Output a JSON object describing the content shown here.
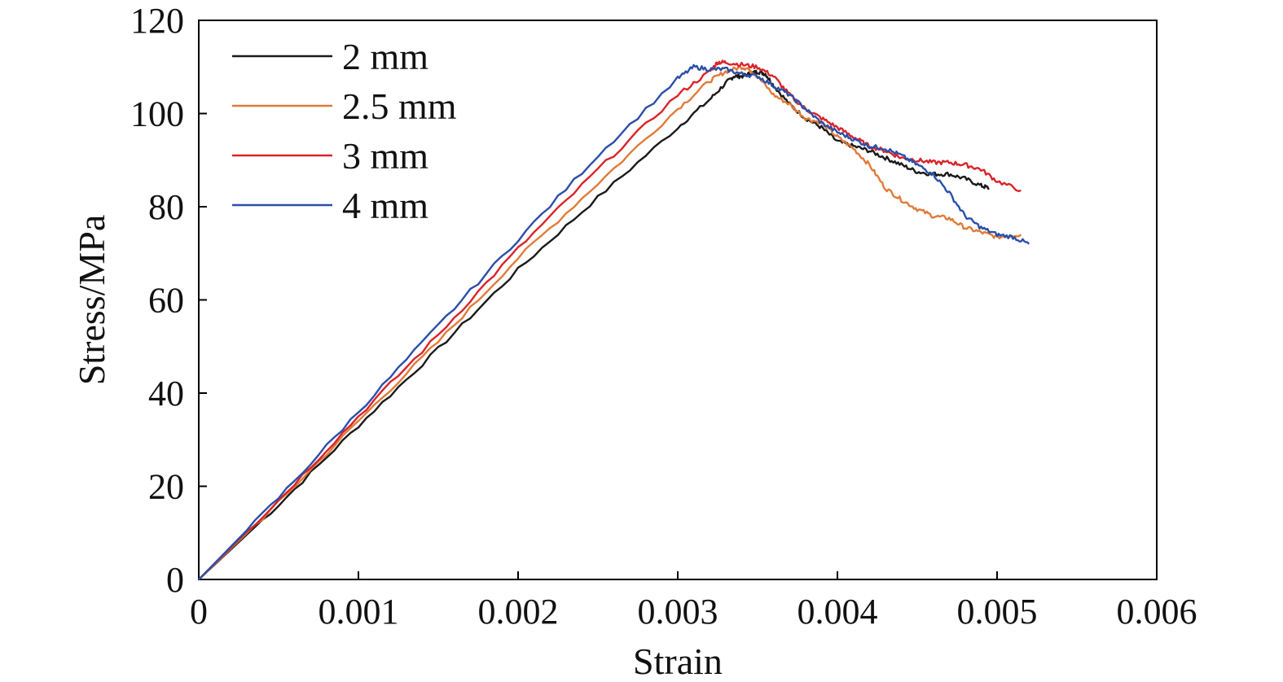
{
  "chart_data": {
    "type": "line",
    "title": "",
    "xlabel": "Strain",
    "ylabel": "Stress/MPa",
    "xlim": [
      0,
      0.006
    ],
    "ylim": [
      0,
      120
    ],
    "x_ticks": [
      {
        "value": 0,
        "label": "0"
      },
      {
        "value": 0.001,
        "label": "0.001"
      },
      {
        "value": 0.002,
        "label": "0.002"
      },
      {
        "value": 0.003,
        "label": "0.003"
      },
      {
        "value": 0.004,
        "label": "0.004"
      },
      {
        "value": 0.005,
        "label": "0.005"
      },
      {
        "value": 0.006,
        "label": "0.006"
      }
    ],
    "y_ticks": [
      {
        "value": 0,
        "label": "0"
      },
      {
        "value": 20,
        "label": "20"
      },
      {
        "value": 40,
        "label": "40"
      },
      {
        "value": 60,
        "label": "60"
      },
      {
        "value": 80,
        "label": "80"
      },
      {
        "value": 100,
        "label": "100"
      },
      {
        "value": 120,
        "label": "120"
      }
    ],
    "grid": false,
    "legend": "top-left",
    "series": [
      {
        "name": "2 mm",
        "color": "#1a1a1a",
        "points": [
          [
            0,
            0
          ],
          [
            0.0005,
            16
          ],
          [
            0.001,
            33
          ],
          [
            0.0015,
            49.5
          ],
          [
            0.002,
            66.5
          ],
          [
            0.0025,
            82
          ],
          [
            0.003,
            97
          ],
          [
            0.0032,
            103
          ],
          [
            0.0033,
            106.5
          ],
          [
            0.00335,
            108
          ],
          [
            0.0034,
            108
          ],
          [
            0.00345,
            108.5
          ],
          [
            0.0035,
            109
          ],
          [
            0.00355,
            108.5
          ],
          [
            0.0036,
            106
          ],
          [
            0.0037,
            102
          ],
          [
            0.0038,
            99
          ],
          [
            0.0039,
            97
          ],
          [
            0.004,
            94
          ],
          [
            0.0041,
            93
          ],
          [
            0.0042,
            92
          ],
          [
            0.0043,
            90.5
          ],
          [
            0.0044,
            89
          ],
          [
            0.0045,
            87.5
          ],
          [
            0.0046,
            87
          ],
          [
            0.0047,
            87
          ],
          [
            0.0048,
            86
          ],
          [
            0.0049,
            84.5
          ],
          [
            0.00495,
            84
          ]
        ]
      },
      {
        "name": "2.5 mm",
        "color": "#e07b39",
        "points": [
          [
            0,
            0
          ],
          [
            0.0005,
            16.5
          ],
          [
            0.001,
            34
          ],
          [
            0.0015,
            51
          ],
          [
            0.002,
            69
          ],
          [
            0.0025,
            85
          ],
          [
            0.003,
            101
          ],
          [
            0.0032,
            107
          ],
          [
            0.0033,
            109
          ],
          [
            0.0034,
            110
          ],
          [
            0.00345,
            109.5
          ],
          [
            0.0035,
            108
          ],
          [
            0.0036,
            104
          ],
          [
            0.0037,
            102
          ],
          [
            0.0038,
            99
          ],
          [
            0.0039,
            98
          ],
          [
            0.004,
            95
          ],
          [
            0.0041,
            92.5
          ],
          [
            0.0042,
            89
          ],
          [
            0.0043,
            84
          ],
          [
            0.0044,
            81.5
          ],
          [
            0.0045,
            79.5
          ],
          [
            0.0046,
            78
          ],
          [
            0.0047,
            77.5
          ],
          [
            0.0048,
            75.5
          ],
          [
            0.0049,
            74.5
          ],
          [
            0.005,
            73.5
          ],
          [
            0.00515,
            74
          ]
        ]
      },
      {
        "name": "3 mm",
        "color": "#d9242a",
        "points": [
          [
            0,
            0
          ],
          [
            0.0005,
            17
          ],
          [
            0.001,
            35
          ],
          [
            0.0015,
            52.5
          ],
          [
            0.002,
            71
          ],
          [
            0.0025,
            88
          ],
          [
            0.003,
            104
          ],
          [
            0.0032,
            109
          ],
          [
            0.00325,
            111
          ],
          [
            0.0033,
            111
          ],
          [
            0.0034,
            110.5
          ],
          [
            0.0035,
            110
          ],
          [
            0.0036,
            108
          ],
          [
            0.0037,
            104
          ],
          [
            0.0038,
            101
          ],
          [
            0.0039,
            99
          ],
          [
            0.004,
            97
          ],
          [
            0.0041,
            95
          ],
          [
            0.0042,
            93
          ],
          [
            0.0043,
            92
          ],
          [
            0.0044,
            90.5
          ],
          [
            0.0045,
            90
          ],
          [
            0.0046,
            89.5
          ],
          [
            0.0047,
            89.5
          ],
          [
            0.0048,
            89
          ],
          [
            0.0049,
            88
          ],
          [
            0.005,
            85.5
          ],
          [
            0.00515,
            83.5
          ]
        ]
      },
      {
        "name": "4 mm",
        "color": "#2b4fa8",
        "points": [
          [
            0,
            0
          ],
          [
            0.0005,
            17.5
          ],
          [
            0.001,
            36
          ],
          [
            0.0015,
            54.5
          ],
          [
            0.002,
            73
          ],
          [
            0.0025,
            91
          ],
          [
            0.003,
            107.5
          ],
          [
            0.0031,
            110
          ],
          [
            0.0032,
            109.5
          ],
          [
            0.0033,
            109.5
          ],
          [
            0.0034,
            108.5
          ],
          [
            0.0035,
            108
          ],
          [
            0.0036,
            106
          ],
          [
            0.0037,
            104
          ],
          [
            0.0038,
            101
          ],
          [
            0.0039,
            98
          ],
          [
            0.004,
            96
          ],
          [
            0.0041,
            94.5
          ],
          [
            0.0042,
            93
          ],
          [
            0.0043,
            92.5
          ],
          [
            0.0044,
            91
          ],
          [
            0.0045,
            89
          ],
          [
            0.0046,
            87
          ],
          [
            0.0047,
            83
          ],
          [
            0.0048,
            78
          ],
          [
            0.0049,
            75.5
          ],
          [
            0.005,
            74
          ],
          [
            0.0051,
            73.5
          ],
          [
            0.0052,
            72
          ]
        ]
      }
    ]
  }
}
